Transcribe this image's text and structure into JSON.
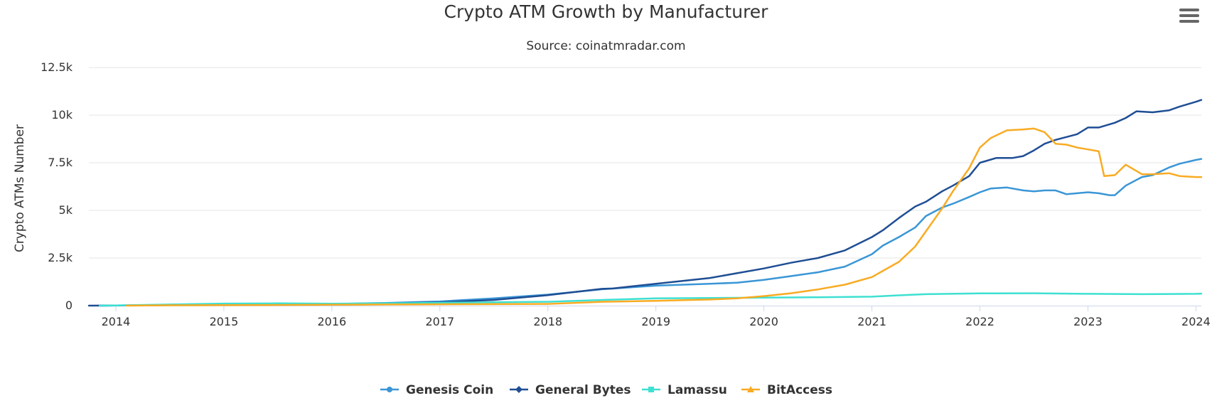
{
  "chart_data": {
    "type": "line",
    "title": "Crypto ATM Growth by Manufacturer",
    "subtitle": "Source: coinatmradar.com",
    "ylabel": "Crypto ATMs Number",
    "xlabel": "",
    "ylim": [
      0,
      12500
    ],
    "xlim": [
      2013.75,
      2024.05
    ],
    "grid": "horizontal",
    "legend_position": "bottom",
    "y_ticks": [
      {
        "value": 0,
        "label": "0"
      },
      {
        "value": 2500,
        "label": "2.5k"
      },
      {
        "value": 5000,
        "label": "5k"
      },
      {
        "value": 7500,
        "label": "7.5k"
      },
      {
        "value": 10000,
        "label": "10k"
      },
      {
        "value": 12500,
        "label": "12.5k"
      }
    ],
    "x_ticks": [
      {
        "value": 2014,
        "label": "2014"
      },
      {
        "value": 2015,
        "label": "2015"
      },
      {
        "value": 2016,
        "label": "2016"
      },
      {
        "value": 2017,
        "label": "2017"
      },
      {
        "value": 2018,
        "label": "2018"
      },
      {
        "value": 2019,
        "label": "2019"
      },
      {
        "value": 2020,
        "label": "2020"
      },
      {
        "value": 2021,
        "label": "2021"
      },
      {
        "value": 2022,
        "label": "2022"
      },
      {
        "value": 2023,
        "label": "2023"
      },
      {
        "value": 2024,
        "label": "2024"
      }
    ],
    "series": [
      {
        "name": "Genesis Coin",
        "color": "#3a96d6",
        "marker": "circle",
        "points": [
          [
            2013.85,
            0
          ],
          [
            2014.0,
            5
          ],
          [
            2014.5,
            35
          ],
          [
            2015.0,
            60
          ],
          [
            2015.5,
            70
          ],
          [
            2016.0,
            90
          ],
          [
            2016.5,
            140
          ],
          [
            2017.0,
            220
          ],
          [
            2017.5,
            380
          ],
          [
            2018.0,
            580
          ],
          [
            2018.5,
            860
          ],
          [
            2019.0,
            1050
          ],
          [
            2019.5,
            1150
          ],
          [
            2019.75,
            1200
          ],
          [
            2020.0,
            1350
          ],
          [
            2020.25,
            1550
          ],
          [
            2020.5,
            1750
          ],
          [
            2020.75,
            2050
          ],
          [
            2021.0,
            2700
          ],
          [
            2021.1,
            3150
          ],
          [
            2021.25,
            3600
          ],
          [
            2021.4,
            4100
          ],
          [
            2021.5,
            4700
          ],
          [
            2021.65,
            5150
          ],
          [
            2021.75,
            5350
          ],
          [
            2021.9,
            5700
          ],
          [
            2022.0,
            5950
          ],
          [
            2022.1,
            6150
          ],
          [
            2022.25,
            6200
          ],
          [
            2022.4,
            6050
          ],
          [
            2022.5,
            6000
          ],
          [
            2022.6,
            6050
          ],
          [
            2022.7,
            6050
          ],
          [
            2022.8,
            5850
          ],
          [
            2022.9,
            5900
          ],
          [
            2023.0,
            5950
          ],
          [
            2023.1,
            5900
          ],
          [
            2023.2,
            5800
          ],
          [
            2023.25,
            5800
          ],
          [
            2023.35,
            6300
          ],
          [
            2023.5,
            6750
          ],
          [
            2023.6,
            6850
          ],
          [
            2023.75,
            7250
          ],
          [
            2023.85,
            7450
          ],
          [
            2024.0,
            7650
          ],
          [
            2024.05,
            7700
          ]
        ]
      },
      {
        "name": "General Bytes",
        "color": "#1f4e94",
        "marker": "diamond",
        "points": [
          [
            2013.75,
            0
          ],
          [
            2013.9,
            5
          ],
          [
            2014.0,
            10
          ],
          [
            2014.5,
            30
          ],
          [
            2015.0,
            55
          ],
          [
            2015.5,
            70
          ],
          [
            2016.0,
            90
          ],
          [
            2016.5,
            120
          ],
          [
            2017.0,
            170
          ],
          [
            2017.5,
            300
          ],
          [
            2018.0,
            550
          ],
          [
            2018.5,
            880
          ],
          [
            2018.6,
            900
          ],
          [
            2019.0,
            1150
          ],
          [
            2019.5,
            1450
          ],
          [
            2019.75,
            1700
          ],
          [
            2020.0,
            1950
          ],
          [
            2020.25,
            2250
          ],
          [
            2020.5,
            2500
          ],
          [
            2020.75,
            2900
          ],
          [
            2021.0,
            3600
          ],
          [
            2021.1,
            3950
          ],
          [
            2021.25,
            4600
          ],
          [
            2021.4,
            5200
          ],
          [
            2021.5,
            5450
          ],
          [
            2021.65,
            6000
          ],
          [
            2021.75,
            6300
          ],
          [
            2021.9,
            6800
          ],
          [
            2022.0,
            7500
          ],
          [
            2022.15,
            7750
          ],
          [
            2022.3,
            7750
          ],
          [
            2022.4,
            7850
          ],
          [
            2022.5,
            8150
          ],
          [
            2022.6,
            8500
          ],
          [
            2022.7,
            8700
          ],
          [
            2022.8,
            8850
          ],
          [
            2022.9,
            9000
          ],
          [
            2023.0,
            9350
          ],
          [
            2023.1,
            9350
          ],
          [
            2023.25,
            9600
          ],
          [
            2023.35,
            9850
          ],
          [
            2023.45,
            10200
          ],
          [
            2023.6,
            10150
          ],
          [
            2023.75,
            10250
          ],
          [
            2023.85,
            10450
          ],
          [
            2024.0,
            10700
          ],
          [
            2024.05,
            10800
          ]
        ]
      },
      {
        "name": "Lamassu",
        "color": "#3ee0d2",
        "marker": "square",
        "points": [
          [
            2013.85,
            0
          ],
          [
            2014.0,
            10
          ],
          [
            2014.5,
            60
          ],
          [
            2015.0,
            110
          ],
          [
            2015.5,
            120
          ],
          [
            2016.0,
            100
          ],
          [
            2016.5,
            120
          ],
          [
            2017.0,
            150
          ],
          [
            2017.5,
            180
          ],
          [
            2018.0,
            200
          ],
          [
            2018.5,
            300
          ],
          [
            2019.0,
            380
          ],
          [
            2019.5,
            400
          ],
          [
            2020.0,
            420
          ],
          [
            2020.5,
            440
          ],
          [
            2021.0,
            470
          ],
          [
            2021.25,
            540
          ],
          [
            2021.5,
            600
          ],
          [
            2022.0,
            640
          ],
          [
            2022.5,
            650
          ],
          [
            2023.0,
            620
          ],
          [
            2023.5,
            600
          ],
          [
            2024.0,
            620
          ],
          [
            2024.05,
            630
          ]
        ]
      },
      {
        "name": "BitAccess",
        "color": "#f9ab23",
        "marker": "triangle",
        "points": [
          [
            2014.1,
            0
          ],
          [
            2014.5,
            20
          ],
          [
            2015.0,
            30
          ],
          [
            2015.5,
            35
          ],
          [
            2016.0,
            45
          ],
          [
            2016.5,
            60
          ],
          [
            2017.0,
            70
          ],
          [
            2017.5,
            80
          ],
          [
            2018.0,
            90
          ],
          [
            2018.5,
            200
          ],
          [
            2019.0,
            250
          ],
          [
            2019.5,
            320
          ],
          [
            2019.75,
            380
          ],
          [
            2020.0,
            500
          ],
          [
            2020.25,
            650
          ],
          [
            2020.5,
            850
          ],
          [
            2020.75,
            1100
          ],
          [
            2021.0,
            1500
          ],
          [
            2021.25,
            2300
          ],
          [
            2021.4,
            3100
          ],
          [
            2021.5,
            3900
          ],
          [
            2021.65,
            5100
          ],
          [
            2021.75,
            6000
          ],
          [
            2021.9,
            7200
          ],
          [
            2022.0,
            8300
          ],
          [
            2022.1,
            8800
          ],
          [
            2022.25,
            9200
          ],
          [
            2022.4,
            9250
          ],
          [
            2022.5,
            9300
          ],
          [
            2022.6,
            9100
          ],
          [
            2022.7,
            8500
          ],
          [
            2022.8,
            8450
          ],
          [
            2022.9,
            8300
          ],
          [
            2023.0,
            8200
          ],
          [
            2023.1,
            8100
          ],
          [
            2023.15,
            6800
          ],
          [
            2023.25,
            6850
          ],
          [
            2023.35,
            7400
          ],
          [
            2023.5,
            6900
          ],
          [
            2023.6,
            6900
          ],
          [
            2023.75,
            6950
          ],
          [
            2023.85,
            6800
          ],
          [
            2024.0,
            6750
          ],
          [
            2024.05,
            6750
          ]
        ]
      }
    ]
  }
}
